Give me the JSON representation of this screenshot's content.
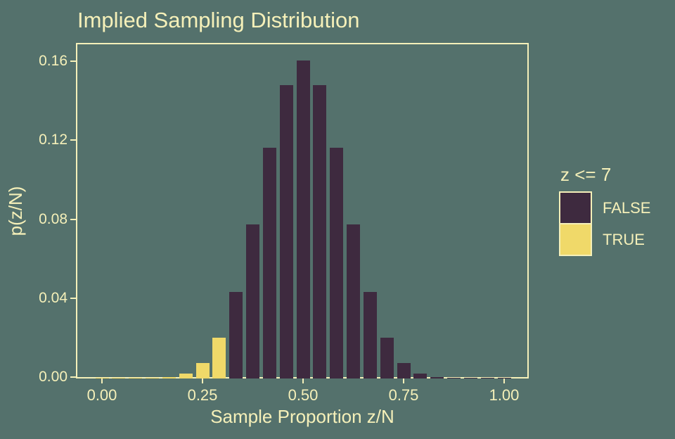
{
  "colors": {
    "background": "#54716C",
    "foreground": "#F5F0B9",
    "bar_false": "#3E2A3F",
    "bar_true": "#F0D969"
  },
  "chart_data": {
    "type": "bar",
    "title": "Implied Sampling Distribution",
    "xlabel": "Sample Proportion z/N",
    "ylabel": "p(z/N)",
    "N": 24,
    "xlim": [
      -0.065,
      1.06
    ],
    "ylim": [
      0,
      0.167
    ],
    "grid": "off",
    "x_ticks": [
      {
        "v": 0.0,
        "label": "0.00"
      },
      {
        "v": 0.25,
        "label": "0.25"
      },
      {
        "v": 0.5,
        "label": "0.50"
      },
      {
        "v": 0.75,
        "label": "0.75"
      },
      {
        "v": 1.0,
        "label": "1.00"
      }
    ],
    "y_ticks": [
      {
        "v": 0.0,
        "label": "0.00"
      },
      {
        "v": 0.04,
        "label": "0.04"
      },
      {
        "v": 0.08,
        "label": "0.08"
      },
      {
        "v": 0.12,
        "label": "0.12"
      },
      {
        "v": 0.16,
        "label": "0.16"
      }
    ],
    "bars": [
      {
        "z": 0,
        "p": 1e-07,
        "z_le_7": true
      },
      {
        "z": 1,
        "p": 1.4e-06,
        "z_le_7": true
      },
      {
        "z": 2,
        "p": 1.65e-05,
        "z_le_7": true
      },
      {
        "z": 3,
        "p": 0.0001206,
        "z_le_7": true
      },
      {
        "z": 4,
        "p": 0.0006333,
        "z_le_7": true
      },
      {
        "z": 5,
        "p": 0.0025335,
        "z_le_7": true
      },
      {
        "z": 6,
        "p": 0.0080228,
        "z_le_7": true
      },
      {
        "z": 7,
        "p": 0.0206301,
        "z_le_7": true
      },
      {
        "z": 8,
        "p": 0.043839,
        "z_le_7": false
      },
      {
        "z": 9,
        "p": 0.077936,
        "z_le_7": false
      },
      {
        "z": 10,
        "p": 0.116904,
        "z_le_7": false
      },
      {
        "z": 11,
        "p": 0.1487869,
        "z_le_7": false
      },
      {
        "z": 12,
        "p": 0.1611803,
        "z_le_7": false
      },
      {
        "z": 13,
        "p": 0.1487869,
        "z_le_7": false
      },
      {
        "z": 14,
        "p": 0.116904,
        "z_le_7": false
      },
      {
        "z": 15,
        "p": 0.077936,
        "z_le_7": false
      },
      {
        "z": 16,
        "p": 0.043839,
        "z_le_7": false
      },
      {
        "z": 17,
        "p": 0.0206301,
        "z_le_7": false
      },
      {
        "z": 18,
        "p": 0.0080228,
        "z_le_7": false
      },
      {
        "z": 19,
        "p": 0.0025335,
        "z_le_7": false
      },
      {
        "z": 20,
        "p": 0.0006333,
        "z_le_7": false
      },
      {
        "z": 21,
        "p": 0.0001206,
        "z_le_7": false
      },
      {
        "z": 22,
        "p": 1.65e-05,
        "z_le_7": false
      },
      {
        "z": 23,
        "p": 1.4e-06,
        "z_le_7": false
      },
      {
        "z": 24,
        "p": 1e-07,
        "z_le_7": false
      }
    ],
    "legend": {
      "title": "z <= 7",
      "position": "right",
      "entries": [
        {
          "label": "FALSE",
          "color": "#3E2A3F"
        },
        {
          "label": "TRUE",
          "color": "#F0D969"
        }
      ]
    }
  }
}
